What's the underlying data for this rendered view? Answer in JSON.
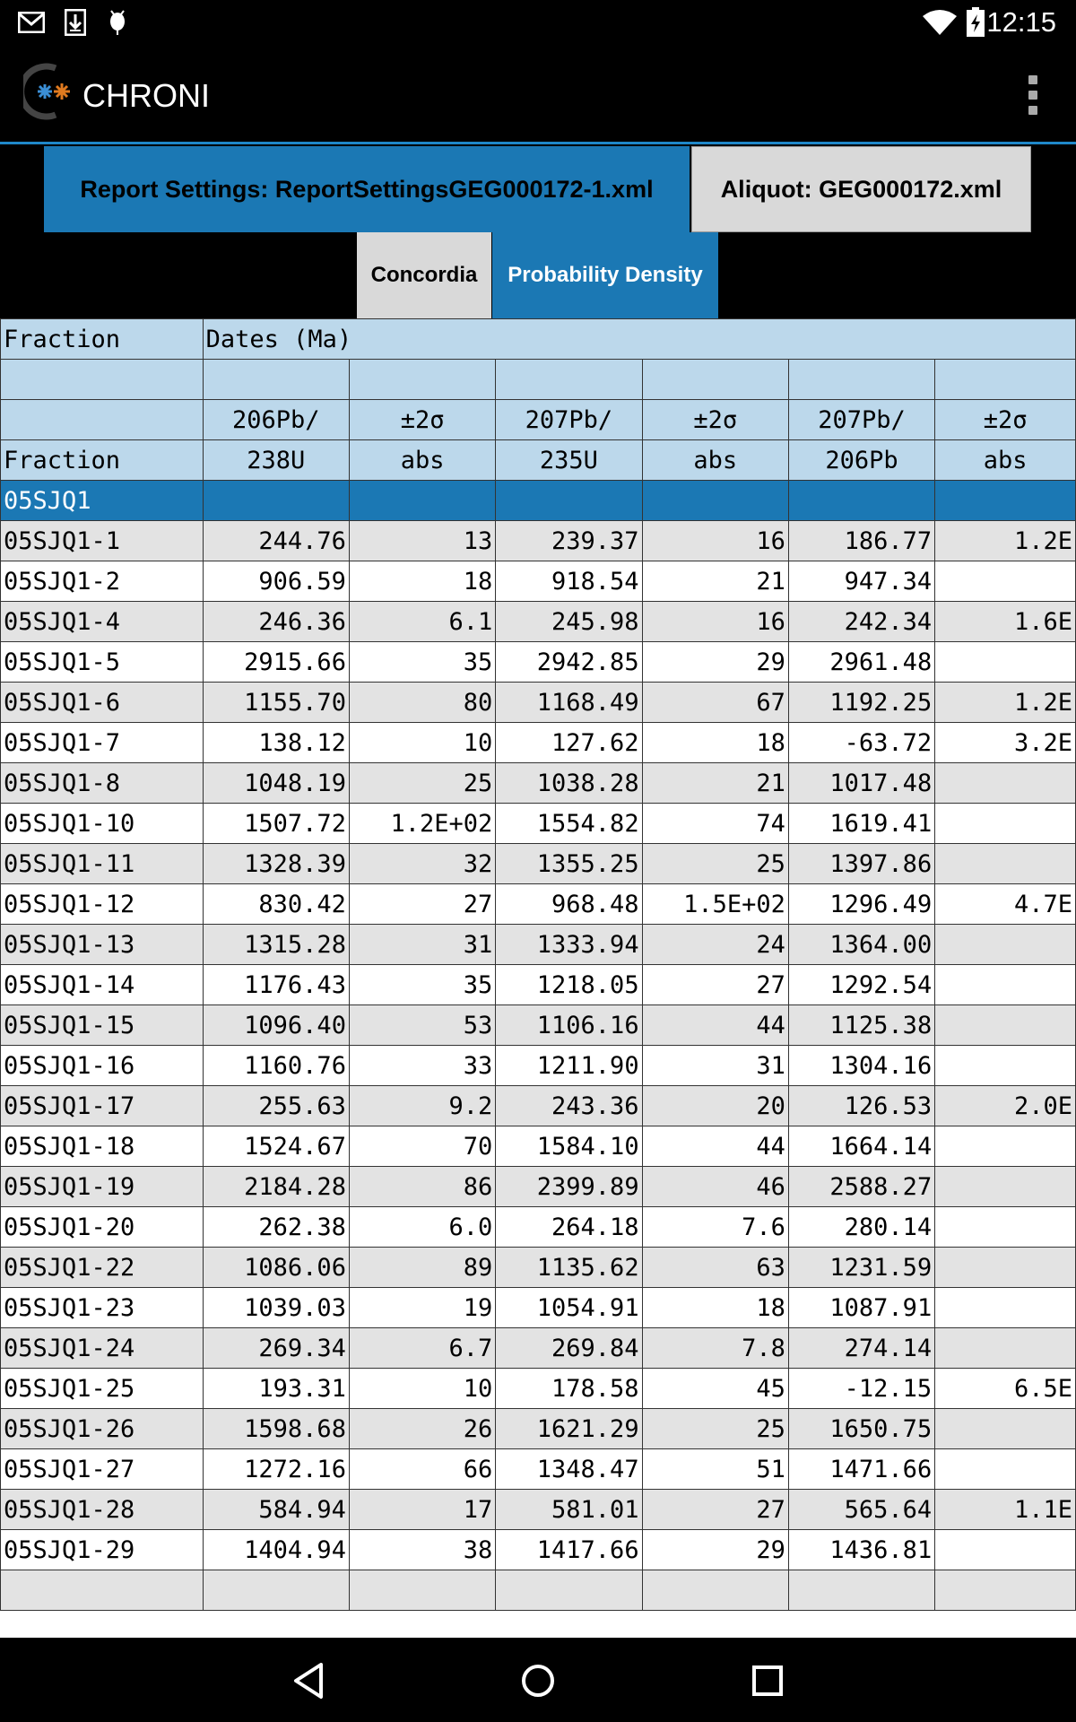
{
  "status_bar": {
    "time": "12:15",
    "left_icons": [
      "gmail-icon",
      "download-icon",
      "android-debug-icon"
    ],
    "right_icons": [
      "wifi-icon",
      "battery-charging-icon"
    ]
  },
  "app_bar": {
    "title": "CHRONI",
    "overflow_icon": "more-vert-icon"
  },
  "settings": {
    "report_label": "Report Settings: ReportSettingsGEG000172-1.xml",
    "aliquot_label": "Aliquot: GEG000172.xml"
  },
  "tabs": [
    {
      "label": "Concordia",
      "selected": false
    },
    {
      "label": "Probability Density",
      "selected": true
    }
  ],
  "table": {
    "category_row": [
      "Fraction",
      "Dates (Ma)"
    ],
    "header_row1": [
      "",
      "206Pb/",
      "±2σ",
      "207Pb/",
      "±2σ",
      "207Pb/",
      "±2σ"
    ],
    "header_row2": [
      "Fraction",
      "238U",
      "abs",
      "235U",
      "abs",
      "206Pb",
      "abs"
    ],
    "aliquot_name": "05SJQ1",
    "rows": [
      [
        "05SJQ1-1",
        "244.76",
        "13",
        "239.37",
        "16",
        "186.77",
        "1.2E"
      ],
      [
        "05SJQ1-2",
        "906.59",
        "18",
        "918.54",
        "21",
        "947.34",
        ""
      ],
      [
        "05SJQ1-4",
        "246.36",
        "6.1",
        "245.98",
        "16",
        "242.34",
        "1.6E"
      ],
      [
        "05SJQ1-5",
        "2915.66",
        "35",
        "2942.85",
        "29",
        "2961.48",
        ""
      ],
      [
        "05SJQ1-6",
        "1155.70",
        "80",
        "1168.49",
        "67",
        "1192.25",
        "1.2E"
      ],
      [
        "05SJQ1-7",
        "138.12",
        "10",
        "127.62",
        "18",
        "-63.72",
        "3.2E"
      ],
      [
        "05SJQ1-8",
        "1048.19",
        "25",
        "1038.28",
        "21",
        "1017.48",
        ""
      ],
      [
        "05SJQ1-10",
        "1507.72",
        "1.2E+02",
        "1554.82",
        "74",
        "1619.41",
        ""
      ],
      [
        "05SJQ1-11",
        "1328.39",
        "32",
        "1355.25",
        "25",
        "1397.86",
        ""
      ],
      [
        "05SJQ1-12",
        "830.42",
        "27",
        "968.48",
        "1.5E+02",
        "1296.49",
        "4.7E"
      ],
      [
        "05SJQ1-13",
        "1315.28",
        "31",
        "1333.94",
        "24",
        "1364.00",
        ""
      ],
      [
        "05SJQ1-14",
        "1176.43",
        "35",
        "1218.05",
        "27",
        "1292.54",
        ""
      ],
      [
        "05SJQ1-15",
        "1096.40",
        "53",
        "1106.16",
        "44",
        "1125.38",
        ""
      ],
      [
        "05SJQ1-16",
        "1160.76",
        "33",
        "1211.90",
        "31",
        "1304.16",
        ""
      ],
      [
        "05SJQ1-17",
        "255.63",
        "9.2",
        "243.36",
        "20",
        "126.53",
        "2.0E"
      ],
      [
        "05SJQ1-18",
        "1524.67",
        "70",
        "1584.10",
        "44",
        "1664.14",
        ""
      ],
      [
        "05SJQ1-19",
        "2184.28",
        "86",
        "2399.89",
        "46",
        "2588.27",
        ""
      ],
      [
        "05SJQ1-20",
        "262.38",
        "6.0",
        "264.18",
        "7.6",
        "280.14",
        ""
      ],
      [
        "05SJQ1-22",
        "1086.06",
        "89",
        "1135.62",
        "63",
        "1231.59",
        ""
      ],
      [
        "05SJQ1-23",
        "1039.03",
        "19",
        "1054.91",
        "18",
        "1087.91",
        ""
      ],
      [
        "05SJQ1-24",
        "269.34",
        "6.7",
        "269.84",
        "7.8",
        "274.14",
        ""
      ],
      [
        "05SJQ1-25",
        "193.31",
        "10",
        "178.58",
        "45",
        "-12.15",
        "6.5E"
      ],
      [
        "05SJQ1-26",
        "1598.68",
        "26",
        "1621.29",
        "25",
        "1650.75",
        ""
      ],
      [
        "05SJQ1-27",
        "1272.16",
        "66",
        "1348.47",
        "51",
        "1471.66",
        ""
      ],
      [
        "05SJQ1-28",
        "584.94",
        "17",
        "581.01",
        "27",
        "565.64",
        "1.1E"
      ],
      [
        "05SJQ1-29",
        "1404.94",
        "38",
        "1417.66",
        "29",
        "1436.81",
        ""
      ],
      [
        "",
        "",
        "",
        "",
        "",
        "",
        ""
      ]
    ]
  },
  "nav_bar": {
    "buttons": [
      "back-icon",
      "home-icon",
      "recents-icon"
    ]
  }
}
